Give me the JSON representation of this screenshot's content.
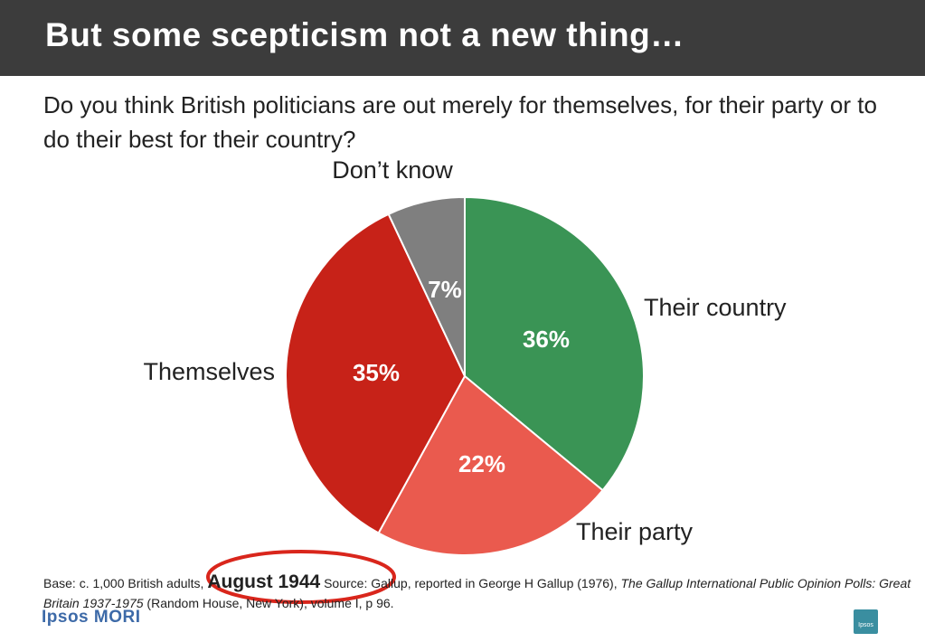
{
  "header": {
    "title": "But some scepticism not a new thing…",
    "question": "Do you think British politicians are out merely for themselves, for their party or to do their best for their country?"
  },
  "chart_data": {
    "type": "pie",
    "title": "",
    "slices": [
      {
        "label": "Their country",
        "value": 36,
        "value_label": "36%",
        "color": "#3a9455"
      },
      {
        "label": "Their party",
        "value": 22,
        "value_label": "22%",
        "color": "#ea5a4e"
      },
      {
        "label": "Themselves",
        "value": 35,
        "value_label": "35%",
        "color": "#c72218"
      },
      {
        "label": "Don’t know",
        "value": 7,
        "value_label": "7%",
        "color": "#7f7f7f"
      }
    ],
    "start": "12 o'clock, clockwise",
    "legend": "none (labels around pie)"
  },
  "footnote": {
    "base": "Base: c. 1,000 British adults,",
    "date": "August 1944",
    "source": "Source: Gallup, reported in George H Gallup (1976),",
    "book": "The Gallup International Public Opinion Polls: Great Britain 1937-1975",
    "publisher": "(Random House, New York), volume I, p 96."
  },
  "branding": {
    "logo_left": "Ipsos MORI",
    "logo_right": "Ipsos"
  },
  "colors": {
    "title_bar": "#3c3c3c",
    "highlight_ring": "#d9261c"
  }
}
